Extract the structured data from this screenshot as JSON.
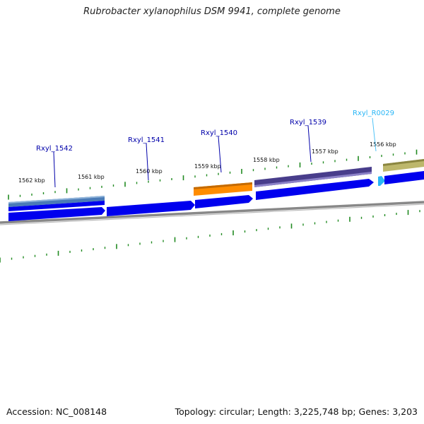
{
  "title": "Rubrobacter xylanophilus DSM 9941, complete genome",
  "footer": {
    "accession": "Accession: NC_008148",
    "summary": "Topology: circular; Length: 3,225,748 bp; Genes: 3,203"
  },
  "kbp_labels": [
    "1562 kbp",
    "1561 kbp",
    "1560 kbp",
    "1559 kbp",
    "1558 kbp",
    "1557 kbp",
    "1556 kbp"
  ],
  "genes": [
    {
      "locus": "Rxyl_1542",
      "color": "#4a7bb7",
      "type": "gene"
    },
    {
      "locus": "Rxyl_1541",
      "color": "#4a7bb7",
      "type": "gene"
    },
    {
      "locus": "Rxyl_1540",
      "color": "#ff8c00",
      "type": "gene"
    },
    {
      "locus": "Rxyl_1539",
      "color": "#483d8b",
      "type": "gene"
    },
    {
      "locus": "Rxyl_R0029",
      "color": "#4fc3f7",
      "type": "rna"
    }
  ],
  "colors": {
    "cds": "#0000ee",
    "tick": "#228b22",
    "backbone": "#888888",
    "gene_label": "#0000aa",
    "rna_label": "#29b6f6",
    "neighbor": "#bdb76b"
  }
}
